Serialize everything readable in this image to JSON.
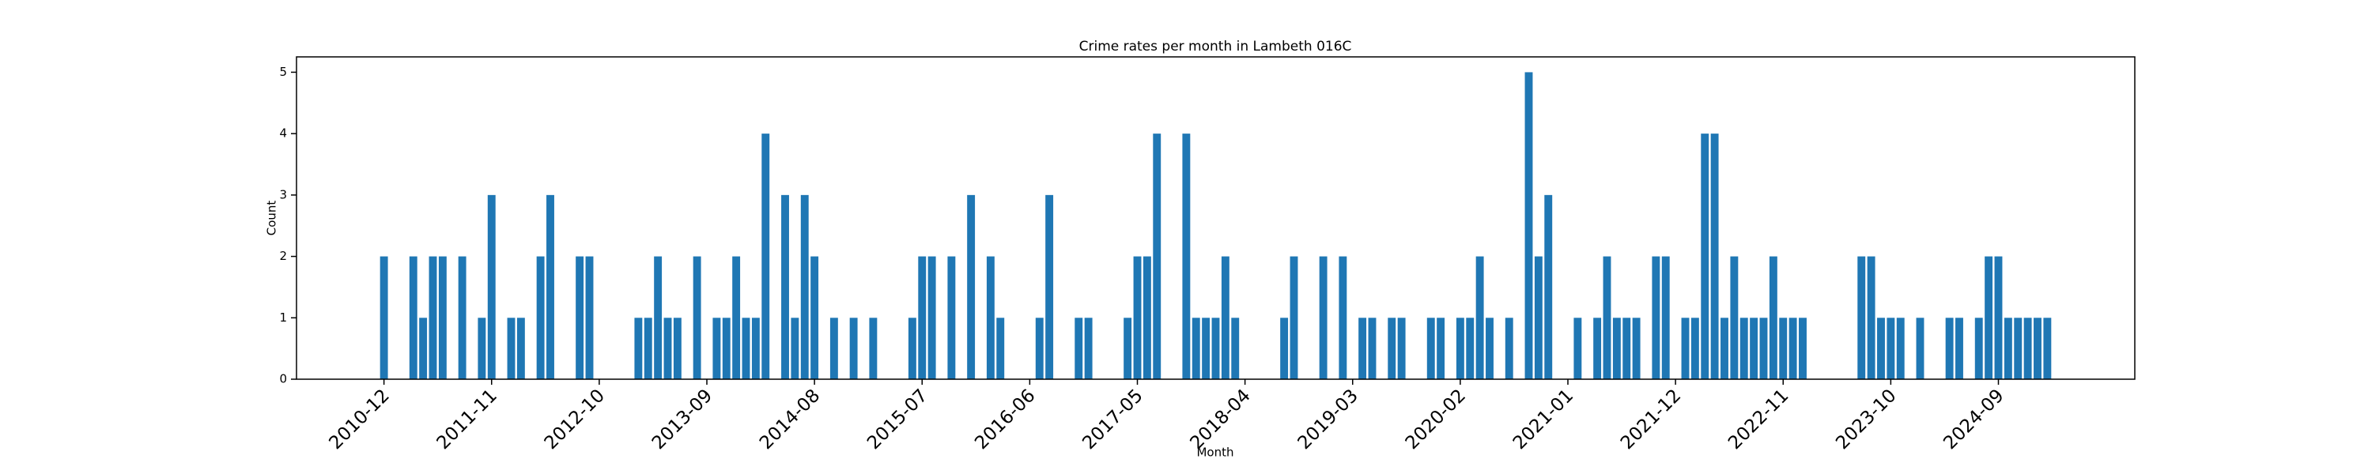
{
  "chart_data": {
    "type": "bar",
    "title": "Crime rates per month in Lambeth 016C",
    "x_label": "Month",
    "y_label": "Count",
    "color": "#1f77b4",
    "categories": [
      "2010-12",
      null,
      null,
      null,
      null,
      null,
      null,
      null,
      null,
      null,
      null,
      "2011-11",
      null,
      null,
      null,
      null,
      null,
      null,
      null,
      null,
      null,
      null,
      "2012-10",
      null,
      null,
      null,
      null,
      null,
      null,
      null,
      null,
      null,
      null,
      "2013-09",
      null,
      null,
      null,
      null,
      null,
      null,
      null,
      null,
      null,
      null,
      "2014-08",
      null,
      null,
      null,
      null,
      null,
      null,
      null,
      null,
      null,
      null,
      "2015-07",
      null,
      null,
      null,
      null,
      null,
      null,
      null,
      null,
      null,
      null,
      "2016-06",
      null,
      null,
      null,
      null,
      null,
      null,
      null,
      null,
      null,
      null,
      "2017-05",
      null,
      null,
      null,
      null,
      null,
      null,
      null,
      null,
      null,
      null,
      "2018-04",
      null,
      null,
      null,
      null,
      null,
      null,
      null,
      null,
      null,
      null,
      "2019-03",
      null,
      null,
      null,
      null,
      null,
      null,
      null,
      null,
      null,
      null,
      "2020-02",
      null,
      null,
      null,
      null,
      null,
      null,
      null,
      null,
      null,
      null,
      "2021-01",
      null,
      null,
      null,
      null,
      null,
      null,
      null,
      null,
      null,
      null,
      "2021-12",
      null,
      null,
      null,
      null,
      null,
      null,
      null,
      null,
      null,
      null,
      "2022-11",
      null,
      null,
      null,
      null,
      null,
      null,
      null,
      null,
      null,
      null,
      "2023-10",
      null,
      null,
      null,
      null,
      null,
      null,
      null,
      null,
      null,
      null,
      "2024-09",
      null,
      null,
      null,
      null,
      null
    ],
    "values": [
      2,
      0,
      0,
      2,
      1,
      2,
      2,
      0,
      2,
      0,
      1,
      3,
      0,
      1,
      1,
      0,
      2,
      3,
      0,
      0,
      2,
      2,
      0,
      0,
      0,
      0,
      1,
      1,
      2,
      1,
      1,
      0,
      2,
      0,
      1,
      1,
      2,
      1,
      1,
      4,
      0,
      3,
      1,
      3,
      2,
      0,
      1,
      0,
      1,
      0,
      1,
      0,
      0,
      0,
      1,
      2,
      2,
      0,
      2,
      0,
      3,
      0,
      2,
      1,
      0,
      0,
      0,
      1,
      3,
      0,
      0,
      1,
      1,
      0,
      0,
      0,
      1,
      2,
      2,
      4,
      0,
      0,
      4,
      1,
      1,
      1,
      2,
      1,
      0,
      0,
      0,
      0,
      1,
      2,
      0,
      0,
      2,
      0,
      2,
      0,
      1,
      1,
      0,
      1,
      1,
      0,
      0,
      1,
      1,
      0,
      1,
      1,
      2,
      1,
      0,
      1,
      0,
      5,
      2,
      3,
      0,
      0,
      1,
      0,
      1,
      2,
      1,
      1,
      1,
      0,
      2,
      2,
      0,
      1,
      1,
      4,
      4,
      1,
      2,
      1,
      1,
      1,
      2,
      1,
      1,
      1,
      0,
      0,
      0,
      0,
      0,
      2,
      2,
      1,
      1,
      1,
      0,
      1,
      0,
      0,
      1,
      1,
      0,
      1,
      2,
      2,
      1,
      1,
      1,
      1,
      1
    ],
    "ylim": [
      0,
      5.25
    ],
    "yticks": [
      0,
      1,
      2,
      3,
      4,
      5
    ],
    "grid": false
  }
}
